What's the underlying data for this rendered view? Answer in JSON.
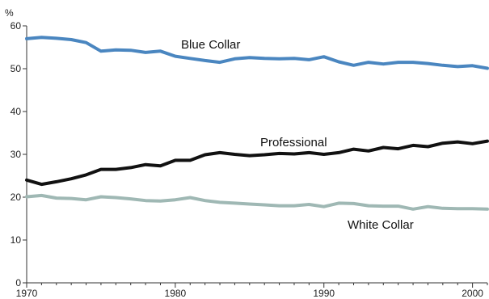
{
  "chart_data": {
    "type": "line",
    "unit_label": "%",
    "x": [
      1970,
      1971,
      1972,
      1973,
      1974,
      1975,
      1976,
      1977,
      1978,
      1979,
      1980,
      1981,
      1982,
      1983,
      1984,
      1985,
      1986,
      1987,
      1988,
      1989,
      1990,
      1991,
      1992,
      1993,
      1994,
      1995,
      1996,
      1997,
      1998,
      1999,
      2000,
      2001
    ],
    "x_ticks": [
      "1970",
      "1980",
      "1990",
      "2000"
    ],
    "y_ticks": [
      "0",
      "10",
      "20",
      "30",
      "40",
      "50",
      "60"
    ],
    "xlim": [
      1970,
      2001
    ],
    "ylim": [
      0,
      60
    ],
    "grid": false,
    "series": [
      {
        "name": "Blue Collar",
        "color": "#4a86c0",
        "values": [
          57.0,
          57.3,
          57.1,
          56.8,
          56.1,
          54.1,
          54.4,
          54.3,
          53.8,
          54.1,
          52.9,
          52.4,
          51.9,
          51.5,
          52.3,
          52.6,
          52.4,
          52.3,
          52.4,
          52.1,
          52.8,
          51.6,
          50.8,
          51.5,
          51.1,
          51.5,
          51.5,
          51.2,
          50.8,
          50.5,
          50.7,
          50.1
        ]
      },
      {
        "name": "Professional",
        "color": "#111111",
        "values": [
          24.0,
          23.0,
          23.6,
          24.3,
          25.2,
          26.5,
          26.5,
          26.9,
          27.6,
          27.3,
          28.6,
          28.6,
          29.9,
          30.4,
          30.0,
          29.7,
          29.9,
          30.2,
          30.1,
          30.4,
          30.0,
          30.4,
          31.2,
          30.8,
          31.6,
          31.3,
          32.1,
          31.8,
          32.6,
          32.9,
          32.5,
          33.1
        ]
      },
      {
        "name": "White Collar",
        "color": "#9fb8b4",
        "values": [
          20.1,
          20.4,
          19.8,
          19.7,
          19.4,
          20.1,
          19.9,
          19.6,
          19.2,
          19.1,
          19.4,
          19.9,
          19.2,
          18.8,
          18.6,
          18.4,
          18.2,
          18.0,
          18.0,
          18.3,
          17.8,
          18.6,
          18.5,
          18.0,
          17.9,
          17.9,
          17.2,
          17.8,
          17.4,
          17.3,
          17.3,
          17.2
        ]
      }
    ]
  }
}
